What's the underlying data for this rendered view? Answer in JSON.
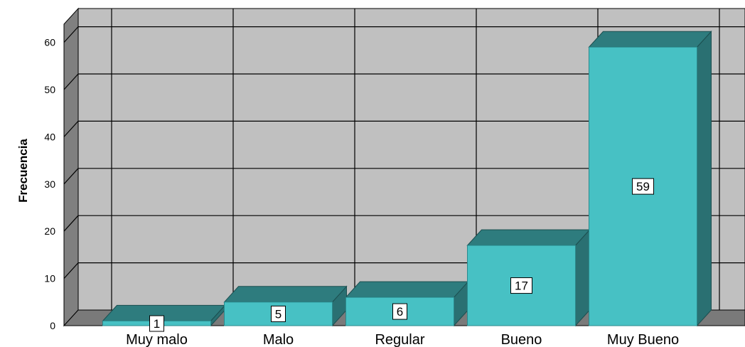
{
  "chart_data": {
    "type": "bar",
    "categories": [
      "Muy malo",
      "Malo",
      "Regular",
      "Bueno",
      "Muy Bueno"
    ],
    "values": [
      1,
      5,
      6,
      17,
      59
    ],
    "data_labels": [
      "1",
      "5",
      "6",
      "17",
      "59"
    ],
    "ylabel": "Frecuencia",
    "xlabel": "",
    "ylim": [
      0,
      65
    ],
    "y_ticks": [
      0,
      10,
      20,
      30,
      40,
      50,
      60
    ],
    "grid": true,
    "three_d": true,
    "colors": {
      "bar_front": "#47C1C4",
      "bar_top": "#2E7C7E",
      "bar_side": "#2A7072",
      "wall_back": "#C0C0C0",
      "wall_side": "#808080",
      "floor": "#7A7A7A",
      "grid": "#000000"
    }
  }
}
